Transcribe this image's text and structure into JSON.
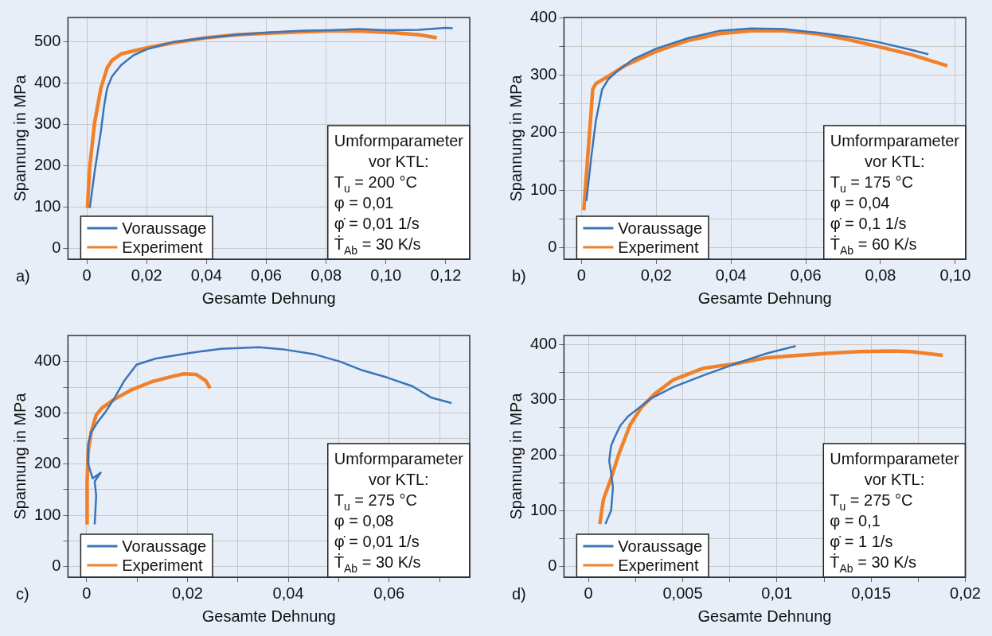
{
  "chart_data": [
    {
      "type": "line",
      "xlabel": "Gesamte Dehnung",
      "ylabel": "Spannung in MPa",
      "grid": true,
      "legend": "bottom left",
      "xlim": [
        -0.0063,
        0.128
      ],
      "ylim": [
        -26,
        559
      ],
      "xticks": [
        {
          "value": 0,
          "label": "0"
        },
        {
          "value": 0.02,
          "label": "0,02"
        },
        {
          "value": 0.04,
          "label": "0,04"
        },
        {
          "value": 0.06,
          "label": "0,06"
        },
        {
          "value": 0.08,
          "label": "0,08"
        },
        {
          "value": 0.1,
          "label": "0,10"
        },
        {
          "value": 0.12,
          "label": "0,12"
        }
      ],
      "yticks": [
        0,
        100,
        200,
        300,
        400,
        500
      ],
      "annotations": [
        "a)",
        "Umformparameter vor KTL:",
        "T$_{u}$ = 200 °C",
        "φ = 0,01",
        "φ̇ = 0,01 1/s",
        "Ṫ$_{Ab}$ = 30 K/s"
      ],
      "series": [
        {
          "name": "Voraussage",
          "color": "#3a75b8",
          "x": [
            0.001,
            0.0026,
            0.0047,
            0.0058,
            0.0068,
            0.0084,
            0.0115,
            0.0157,
            0.02,
            0.029,
            0.04,
            0.05,
            0.061,
            0.071,
            0.082,
            0.091,
            0.1,
            0.111,
            0.12,
            0.1223
          ],
          "values": [
            98,
            185,
            283,
            346,
            388,
            416,
            444,
            468,
            482,
            500,
            510,
            517,
            523,
            527,
            528,
            531,
            528,
            529,
            534,
            533
          ]
        },
        {
          "name": "Experiment",
          "color": "#f0812a",
          "x": [
            0.0002,
            0.001,
            0.0026,
            0.0047,
            0.0068,
            0.0084,
            0.0115,
            0.0168,
            0.021,
            0.029,
            0.04,
            0.05,
            0.061,
            0.071,
            0.082,
            0.092,
            0.103,
            0.111,
            0.117
          ],
          "values": [
            98,
            199,
            304,
            388,
            437,
            455,
            471,
            480,
            487,
            498,
            510,
            517,
            521,
            524,
            527,
            526,
            522,
            517,
            510
          ]
        }
      ]
    },
    {
      "type": "line",
      "xlabel": "Gesamte Dehnung",
      "ylabel": "Spannung in MPa",
      "grid": true,
      "legend": "bottom left",
      "xlim": [
        -0.0047,
        0.1028
      ],
      "ylim": [
        -20,
        400
      ],
      "xticks": [
        {
          "value": 0,
          "label": "0"
        },
        {
          "value": 0.02,
          "label": "0,02"
        },
        {
          "value": 0.04,
          "label": "0,04"
        },
        {
          "value": 0.06,
          "label": "0,06"
        },
        {
          "value": 0.08,
          "label": "0,08"
        },
        {
          "value": 0.1,
          "label": "0,10"
        }
      ],
      "yticks": [
        0,
        {
          "value": 50,
          "label": null
        },
        100,
        {
          "value": 150,
          "label": null
        },
        200,
        {
          "value": 250,
          "label": null
        },
        300,
        {
          "value": 350,
          "label": null
        },
        400
      ],
      "annotations": [
        "b)",
        "Umformparameter vor KTL:",
        "T$_{u}$ = 175 °C",
        "φ = 0,04",
        "φ̇ = 0,1 1/s",
        "Ṫ$_{Ab}$ = 60 K/s"
      ],
      "series": [
        {
          "name": "Voraussage",
          "color": "#3a75b8",
          "x": [
            0.0013,
            0.0026,
            0.0038,
            0.0047,
            0.0055,
            0.0072,
            0.0098,
            0.014,
            0.02,
            0.0285,
            0.037,
            0.0455,
            0.054,
            0.0626,
            0.0711,
            0.0796,
            0.088,
            0.0928
          ],
          "values": [
            81,
            157,
            219,
            249,
            275,
            293,
            308,
            328,
            346,
            364,
            377,
            381,
            380,
            374,
            367,
            357,
            344,
            336
          ]
        },
        {
          "name": "Experiment",
          "color": "#f0812a",
          "x": [
            0.0006,
            0.0017,
            0.0026,
            0.003,
            0.0038,
            0.0072,
            0.0115,
            0.02,
            0.0285,
            0.037,
            0.0455,
            0.054,
            0.0626,
            0.0711,
            0.0796,
            0.088,
            0.0979
          ],
          "values": [
            65,
            162,
            239,
            275,
            285,
            298,
            316,
            341,
            360,
            372,
            377,
            377,
            372,
            362,
            349,
            336,
            316
          ]
        }
      ]
    },
    {
      "type": "line",
      "xlabel": "Gesamte Dehnung",
      "ylabel": "Spannung in MPa",
      "grid": true,
      "legend": "bottom left",
      "xlim": [
        -0.0037,
        0.076
      ],
      "ylim": [
        -21,
        451
      ],
      "xticks": [
        {
          "value": 0,
          "label": "0"
        },
        {
          "value": 0.01,
          "label": null
        },
        {
          "value": 0.02,
          "label": "0,02"
        },
        {
          "value": 0.03,
          "label": null
        },
        {
          "value": 0.04,
          "label": "0,04"
        },
        {
          "value": 0.05,
          "label": null
        },
        {
          "value": 0.06,
          "label": "0,06"
        },
        {
          "value": 0.07,
          "label": null
        }
      ],
      "yticks": [
        0,
        {
          "value": 50,
          "label": null
        },
        100,
        {
          "value": 150,
          "label": null
        },
        200,
        {
          "value": 250,
          "label": null
        },
        300,
        {
          "value": 350,
          "label": null
        },
        400
      ],
      "annotations": [
        "c)",
        "Umformparameter vor KTL:",
        "T$_{u}$ = 275 °C",
        "φ = 0,08",
        "φ̇ = 0,01 1/s",
        "Ṫ$_{Ab}$ = 30 K/s"
      ],
      "series": [
        {
          "name": "Voraussage",
          "color": "#3a75b8",
          "x": [
            0.0016,
            0.0019,
            0.0016,
            0.0028,
            0.0012,
            0.0003,
            0.0003,
            0.0009,
            0.0022,
            0.0037,
            0.0056,
            0.0075,
            0.0099,
            0.0137,
            0.0205,
            0.0267,
            0.0342,
            0.039,
            0.0453,
            0.0503,
            0.0547,
            0.0596,
            0.0646,
            0.0683,
            0.0724
          ],
          "values": [
            82,
            138,
            166,
            183,
            172,
            200,
            239,
            262,
            282,
            301,
            330,
            363,
            394,
            406,
            417,
            425,
            428,
            424,
            414,
            400,
            383,
            369,
            352,
            330,
            319
          ]
        },
        {
          "name": "Experiment",
          "color": "#f0812a",
          "x": [
            0.0001,
            0.0001,
            0.0003,
            0.0009,
            0.0019,
            0.0031,
            0.0056,
            0.0087,
            0.013,
            0.0174,
            0.0193,
            0.0217,
            0.0236,
            0.0245
          ],
          "values": [
            82,
            166,
            223,
            262,
            296,
            310,
            327,
            344,
            361,
            372,
            376,
            375,
            363,
            348
          ]
        }
      ]
    },
    {
      "type": "line",
      "xlabel": "Gesamte Dehnung",
      "ylabel": "Spannung in MPa",
      "grid": true,
      "legend": "bottom left",
      "xlim": [
        -0.0013,
        0.02
      ],
      "ylim": [
        -20,
        416
      ],
      "xticks": [
        {
          "value": 0,
          "label": "0"
        },
        {
          "value": 0.0025,
          "label": null
        },
        {
          "value": 0.005,
          "label": "0,005"
        },
        {
          "value": 0.0075,
          "label": null
        },
        {
          "value": 0.01,
          "label": "0,01"
        },
        {
          "value": 0.0125,
          "label": null
        },
        {
          "value": 0.015,
          "label": "0,015"
        },
        {
          "value": 0.0175,
          "label": null
        },
        {
          "value": 0.02,
          "label": "0,02"
        }
      ],
      "yticks": [
        0,
        {
          "value": 50,
          "label": null
        },
        100,
        {
          "value": 150,
          "label": null
        },
        200,
        {
          "value": 250,
          "label": null
        },
        300,
        {
          "value": 350,
          "label": null
        },
        400
      ],
      "annotations": [
        "d)",
        "Umformparameter vor KTL:",
        "T$_{u}$ = 275 °C",
        "φ = 0,1",
        "φ̇ = 1 1/s",
        "Ṫ$_{Ab}$ = 30 K/s"
      ],
      "series": [
        {
          "name": "Voraussage",
          "color": "#3a75b8",
          "x": [
            0.0009,
            0.0012,
            0.0013,
            0.0012,
            0.0011,
            0.0012,
            0.0014,
            0.0017,
            0.0021,
            0.0027,
            0.0033,
            0.0045,
            0.0061,
            0.0078,
            0.0095,
            0.011
          ],
          "values": [
            76,
            100,
            142,
            169,
            190,
            217,
            233,
            254,
            270,
            286,
            302,
            323,
            344,
            365,
            384,
            397
          ]
        },
        {
          "name": "Experiment",
          "color": "#f0812a",
          "x": [
            0.0006,
            0.0008,
            0.0012,
            0.0016,
            0.0022,
            0.0028,
            0.0035,
            0.0045,
            0.0061,
            0.0078,
            0.0095,
            0.0111,
            0.0128,
            0.0144,
            0.0161,
            0.0171,
            0.0188
          ],
          "values": [
            76,
            121,
            158,
            201,
            254,
            286,
            310,
            336,
            357,
            365,
            376,
            380,
            384,
            387,
            388,
            387,
            380
          ]
        }
      ]
    }
  ]
}
